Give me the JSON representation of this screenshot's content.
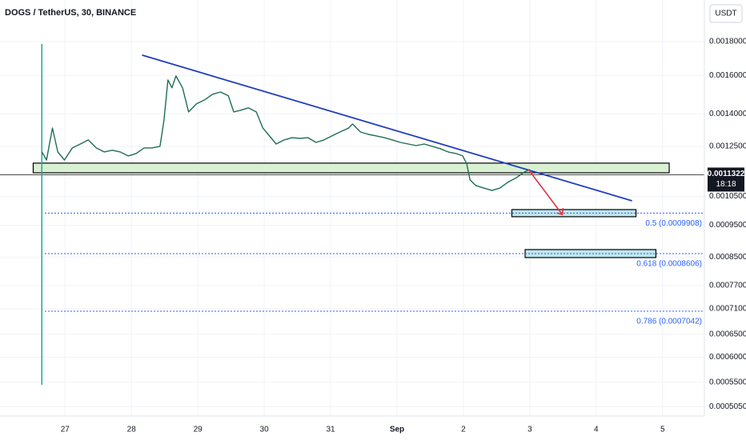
{
  "chart_data": {
    "type": "line",
    "title": "DOGS / TetherUS, 30, BINANCE",
    "currency": "USDT",
    "log_scale": true,
    "grid": true,
    "xlim": [
      -0.98,
      9.63
    ],
    "xticks": [
      {
        "value": 0,
        "label": "27"
      },
      {
        "value": 1,
        "label": "28"
      },
      {
        "value": 2,
        "label": "29"
      },
      {
        "value": 3,
        "label": "30"
      },
      {
        "value": 4,
        "label": "31"
      },
      {
        "value": 5,
        "label": "Sep"
      },
      {
        "value": 6,
        "label": "2"
      },
      {
        "value": 7,
        "label": "3"
      },
      {
        "value": 8,
        "label": "4"
      },
      {
        "value": 9,
        "label": "5"
      }
    ],
    "ylim": [
      0.000489,
      0.00208
    ],
    "yticks": [
      {
        "value": 0.0018,
        "label": "0.0018000"
      },
      {
        "value": 0.0016,
        "label": "0.0016000"
      },
      {
        "value": 0.0014,
        "label": "0.0014000"
      },
      {
        "value": 0.00125,
        "label": "0.0012500"
      },
      {
        "value": 0.00105,
        "label": "0.0010500"
      },
      {
        "value": 0.00095,
        "label": "0.0009500"
      },
      {
        "value": 0.00085,
        "label": "0.0008500"
      },
      {
        "value": 0.00077,
        "label": "0.0007700"
      },
      {
        "value": 0.00071,
        "label": "0.0007100"
      },
      {
        "value": 0.00065,
        "label": "0.0006500"
      },
      {
        "value": 0.0006,
        "label": "0.0006000"
      },
      {
        "value": 0.00055,
        "label": "0.0005500"
      },
      {
        "value": 0.000505,
        "label": "0.0005050"
      }
    ],
    "series": [
      {
        "color": "#1f6e55",
        "x": [
          -0.35,
          -0.28,
          -0.19,
          -0.11,
          -0.01,
          0.11,
          0.23,
          0.35,
          0.47,
          0.59,
          0.71,
          0.83,
          0.95,
          1.07,
          1.19,
          1.31,
          1.43,
          1.49,
          1.55,
          1.61,
          1.67,
          1.77,
          1.86,
          1.98,
          2.1,
          2.22,
          2.34,
          2.46,
          2.54,
          2.64,
          2.76,
          2.88,
          2.98,
          3.06,
          3.18,
          3.3,
          3.42,
          3.54,
          3.66,
          3.78,
          3.9,
          4.02,
          4.14,
          4.27,
          4.33,
          4.45,
          4.57,
          4.69,
          4.81,
          4.93,
          5.05,
          5.17,
          5.29,
          5.41,
          5.53,
          5.65,
          5.77,
          5.89,
          5.99,
          6.05,
          6.1,
          6.19,
          6.31,
          6.43,
          6.55,
          6.67,
          6.8,
          6.92,
          7.0
        ],
        "values": [
          0.001226,
          0.001192,
          0.001332,
          0.001226,
          0.001192,
          0.001243,
          0.00126,
          0.001278,
          0.001243,
          0.001226,
          0.001233,
          0.001226,
          0.001209,
          0.001219,
          0.001243,
          0.001243,
          0.00125,
          0.00137,
          0.001575,
          0.001532,
          0.001597,
          0.001532,
          0.001409,
          0.001449,
          0.001469,
          0.001498,
          0.00151,
          0.00149,
          0.001409,
          0.001417,
          0.001429,
          0.001409,
          0.001332,
          0.001303,
          0.00126,
          0.001278,
          0.001288,
          0.001285,
          0.001288,
          0.001267,
          0.001278,
          0.001296,
          0.001314,
          0.001332,
          0.001351,
          0.001314,
          0.001303,
          0.001296,
          0.001288,
          0.001278,
          0.001267,
          0.00126,
          0.001253,
          0.00126,
          0.00125,
          0.00124,
          0.001226,
          0.001219,
          0.001209,
          0.001176,
          0.001112,
          0.00109,
          0.001081,
          0.001072,
          0.001081,
          0.001103,
          0.001121,
          0.001143,
          0.001153
        ]
      }
    ],
    "spike": {
      "x": -0.35,
      "high": 0.001785,
      "low": 0.000545,
      "color": "#26a69a"
    },
    "last_price": {
      "value": 0.0011322,
      "label": "0.0011322"
    },
    "countdown": "18:18",
    "trendline": {
      "x": [
        1.16,
        8.54
      ],
      "values": [
        0.001717,
        0.001034
      ],
      "color": "#1f3fbf"
    },
    "arrow": {
      "x": [
        6.98,
        7.49
      ],
      "values": [
        0.001153,
        0.000986
      ],
      "color": "#e5323d"
    },
    "zones": [
      {
        "x": [
          -0.48,
          9.1
        ],
        "values": [
          0.001179,
          0.00114
        ],
        "color": "#d9f0d3"
      },
      {
        "x": [
          6.73,
          8.6
        ],
        "values": [
          0.001003,
          0.0009784
        ],
        "color": "#bfe6ee"
      },
      {
        "x": [
          6.93,
          8.9
        ],
        "values": [
          0.0008727,
          0.0008487
        ],
        "color": "#bfe6ee"
      }
    ],
    "levels_color": "#2962ff",
    "levels": [
      {
        "value": 0.0009908,
        "label": "0.5 (0.0009908)"
      },
      {
        "value": 0.0008606,
        "label": "0.618 (0.0008606)"
      },
      {
        "value": 0.0007042,
        "label": "0.786 (0.0007042)"
      }
    ]
  }
}
